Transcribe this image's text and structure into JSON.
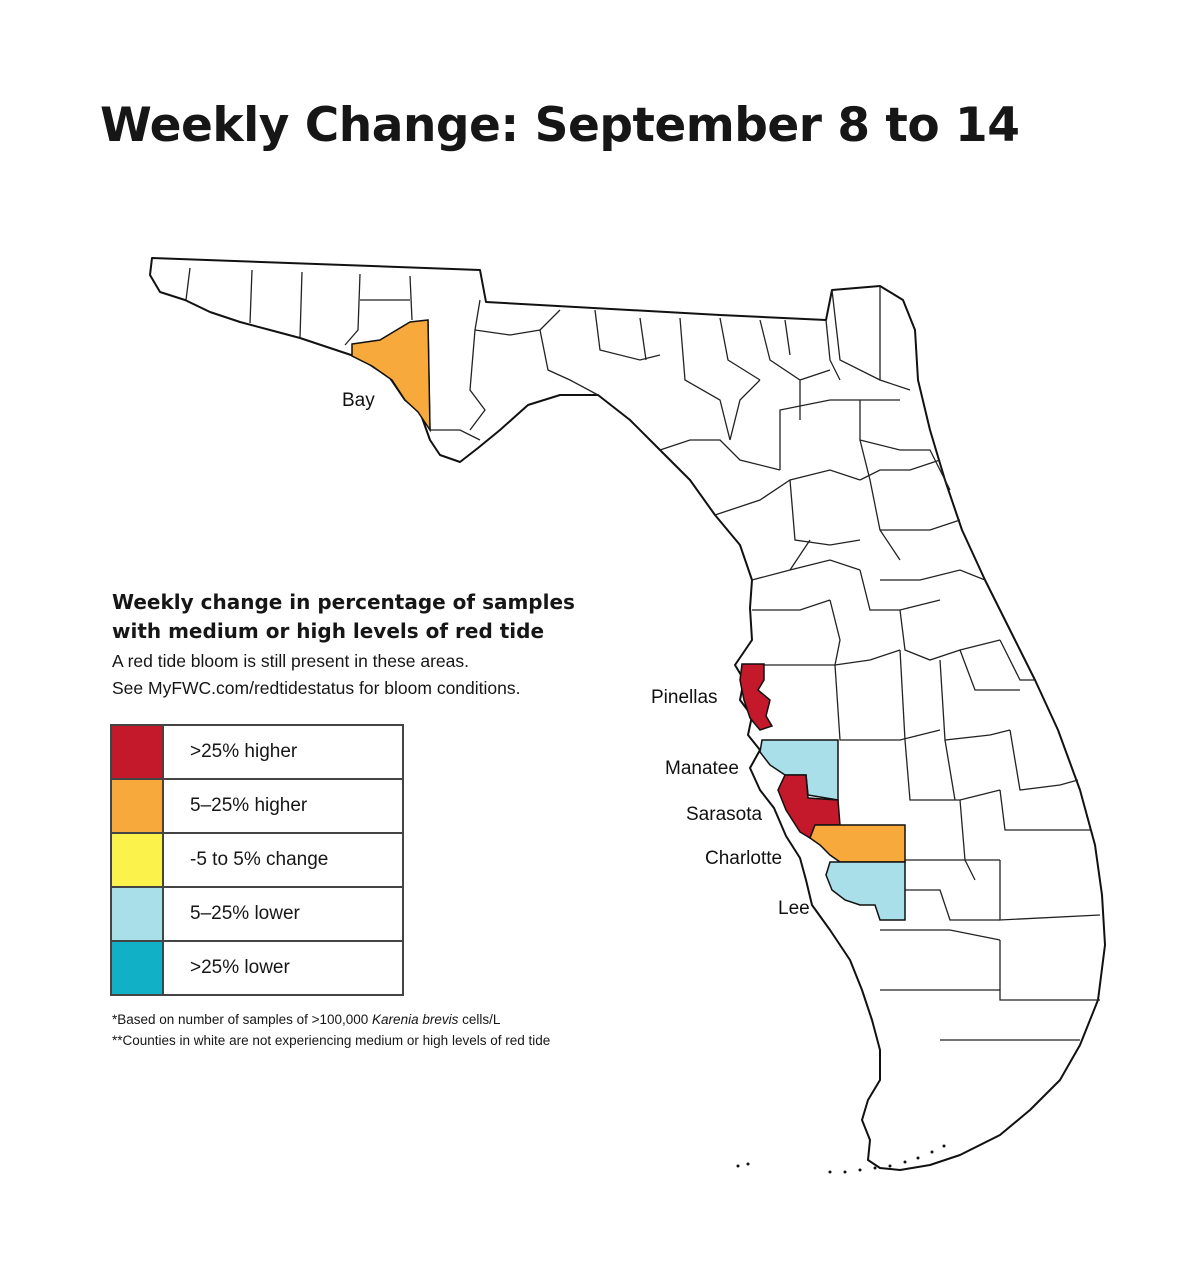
{
  "title": "Weekly Change: September 8 to 14",
  "legend": {
    "title_line1": "Weekly change in percentage of samples",
    "title_line2": "with medium or high levels of red tide",
    "subtitle_line1": "A red tide bloom is still present in these areas.",
    "subtitle_line2": "See MyFWC.com/redtidestatus for bloom conditions.",
    "items": [
      {
        "label": ">25% higher",
        "color": "#c4182b"
      },
      {
        "label": "5–25% higher",
        "color": "#f7a93b"
      },
      {
        "label": "-5 to 5% change",
        "color": "#fbf34b"
      },
      {
        "label": "5–25% lower",
        "color": "#a8dfe8"
      },
      {
        "label": ">25% lower",
        "color": "#11b0c6"
      }
    ]
  },
  "counties": {
    "bay": {
      "label": "Bay",
      "category": "5–25% higher",
      "color": "#f7a93b"
    },
    "pinellas": {
      "label": "Pinellas",
      "category": ">25% higher",
      "color": "#c4182b"
    },
    "manatee": {
      "label": "Manatee",
      "category": "5–25% lower",
      "color": "#a8dfe8"
    },
    "sarasota": {
      "label": "Sarasota",
      "category": ">25% higher",
      "color": "#c4182b"
    },
    "charlotte": {
      "label": "Charlotte",
      "category": "5–25% higher",
      "color": "#f7a93b"
    },
    "lee": {
      "label": "Lee",
      "category": "5–25% lower",
      "color": "#a8dfe8"
    }
  },
  "footnotes": {
    "note1_prefix": "*Based on number of samples of >100,000 ",
    "note1_species": "Karenia brevis",
    "note1_suffix": " cells/L",
    "note2": "**Counties in white are not experiencing medium or high levels of red tide"
  }
}
